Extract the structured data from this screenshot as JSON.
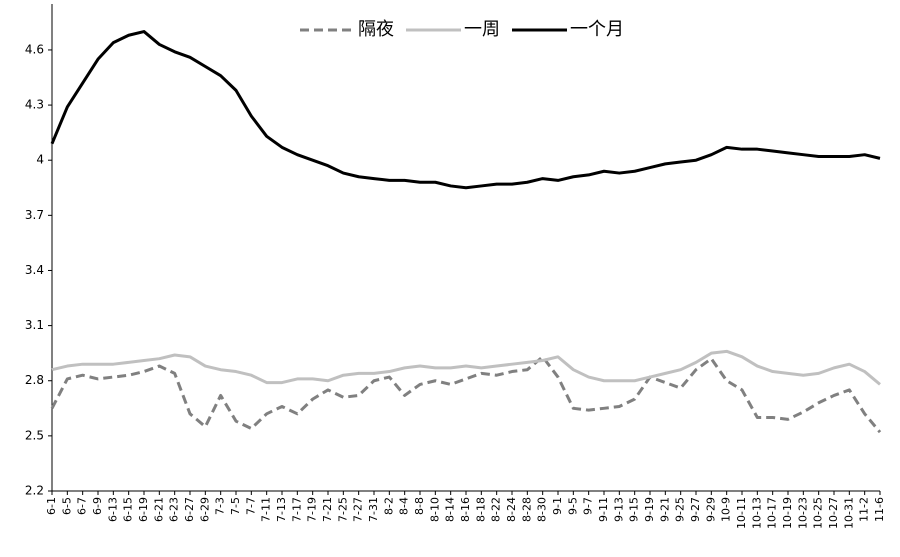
{
  "chart_data": {
    "type": "line",
    "categories": [
      "6-1",
      "6-5",
      "6-7",
      "6-9",
      "6-13",
      "6-15",
      "6-19",
      "6-21",
      "6-23",
      "6-27",
      "6-29",
      "7-3",
      "7-5",
      "7-7",
      "7-11",
      "7-13",
      "7-17",
      "7-19",
      "7-21",
      "7-25",
      "7-27",
      "7-31",
      "8-2",
      "8-4",
      "8-8",
      "8-10",
      "8-14",
      "8-16",
      "8-18",
      "8-22",
      "8-24",
      "8-28",
      "8-30",
      "9-1",
      "9-5",
      "9-7",
      "9-11",
      "9-13",
      "9-15",
      "9-19",
      "9-21",
      "9-25",
      "9-27",
      "9-29",
      "10-9",
      "10-11",
      "10-13",
      "10-17",
      "10-19",
      "10-23",
      "10-25",
      "10-27",
      "10-31",
      "11-2",
      "11-6"
    ],
    "series": [
      {
        "name": "隔夜",
        "color": "#808080",
        "dash": true,
        "values": [
          2.65,
          2.81,
          2.83,
          2.81,
          2.82,
          2.83,
          2.85,
          2.88,
          2.84,
          2.62,
          2.55,
          2.72,
          2.58,
          2.54,
          2.62,
          2.66,
          2.62,
          2.7,
          2.75,
          2.71,
          2.72,
          2.8,
          2.82,
          2.72,
          2.78,
          2.8,
          2.78,
          2.81,
          2.84,
          2.83,
          2.85,
          2.86,
          2.93,
          2.82,
          2.65,
          2.64,
          2.65,
          2.66,
          2.7,
          2.82,
          2.79,
          2.76,
          2.86,
          2.92,
          2.8,
          2.75,
          2.6,
          2.6,
          2.59,
          2.63,
          2.68,
          2.72,
          2.75,
          2.62,
          2.52
        ]
      },
      {
        "name": "一周",
        "color": "#c0c0c0",
        "dash": false,
        "values": [
          2.86,
          2.88,
          2.89,
          2.89,
          2.89,
          2.9,
          2.91,
          2.92,
          2.94,
          2.93,
          2.88,
          2.86,
          2.85,
          2.83,
          2.79,
          2.79,
          2.81,
          2.81,
          2.8,
          2.83,
          2.84,
          2.84,
          2.85,
          2.87,
          2.88,
          2.87,
          2.87,
          2.88,
          2.87,
          2.88,
          2.89,
          2.9,
          2.91,
          2.93,
          2.86,
          2.82,
          2.8,
          2.8,
          2.8,
          2.82,
          2.84,
          2.86,
          2.9,
          2.95,
          2.96,
          2.93,
          2.88,
          2.85,
          2.84,
          2.83,
          2.84,
          2.87,
          2.89,
          2.85,
          2.78
        ]
      },
      {
        "name": "一个月",
        "color": "#000000",
        "dash": false,
        "values": [
          4.09,
          4.29,
          4.42,
          4.55,
          4.64,
          4.68,
          4.7,
          4.63,
          4.59,
          4.56,
          4.51,
          4.46,
          4.38,
          4.24,
          4.13,
          4.07,
          4.03,
          4.0,
          3.97,
          3.93,
          3.91,
          3.9,
          3.89,
          3.89,
          3.88,
          3.88,
          3.86,
          3.85,
          3.86,
          3.87,
          3.87,
          3.88,
          3.9,
          3.89,
          3.91,
          3.92,
          3.94,
          3.93,
          3.94,
          3.96,
          3.98,
          3.99,
          4.0,
          4.03,
          4.07,
          4.06,
          4.06,
          4.05,
          4.04,
          4.03,
          4.02,
          4.02,
          4.02,
          4.03,
          4.01
        ]
      }
    ],
    "ylim": [
      2.2,
      4.85
    ],
    "yticks": [
      2.2,
      2.5,
      2.8,
      3.1,
      3.4,
      3.7,
      4,
      4.3,
      4.6
    ],
    "legend": "top"
  }
}
